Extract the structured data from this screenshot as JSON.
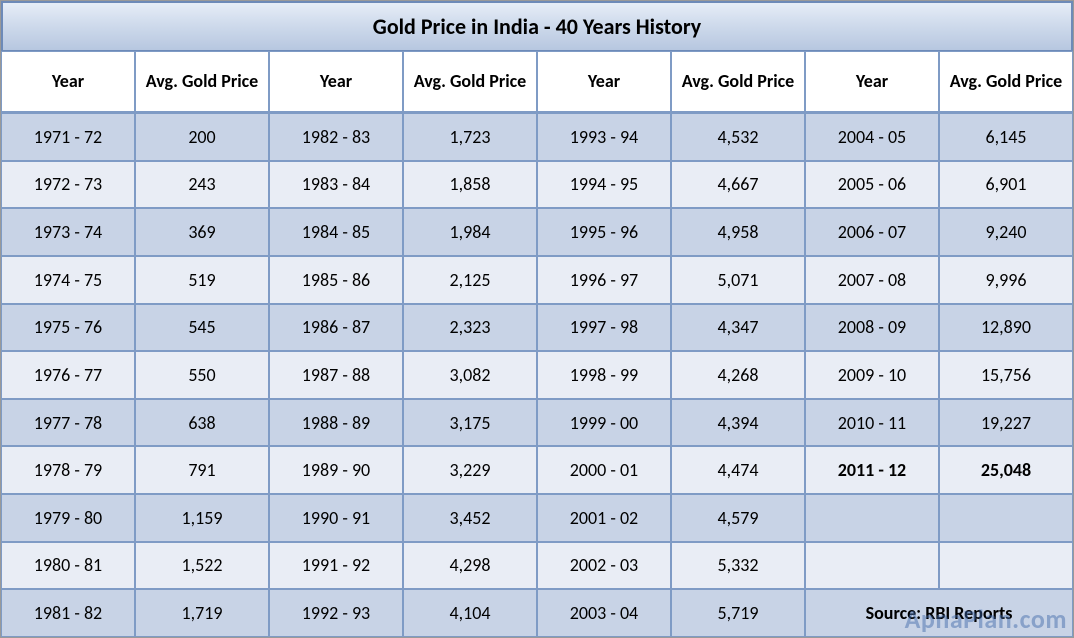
{
  "table": {
    "title": "Gold Price in India - 40 Years History",
    "header_pair": {
      "year": "Year",
      "price": "Avg. Gold Price"
    },
    "column_pairs": 4,
    "rows_per_column": 11,
    "colors": {
      "border": "#7f9bc5",
      "title_gradient_top": "#e6edf7",
      "title_gradient_mid": "#cdd9eb",
      "title_gradient_bottom": "#b7c7e0",
      "row_odd_bg": "#c8d3e6",
      "row_even_bg": "#e9edf5",
      "header_bg": "#ffffff",
      "text": "#000000",
      "watermark": "#3b65a8"
    },
    "fonts": {
      "title_size_pt": 17,
      "header_size_pt": 14,
      "cell_size_pt": 14,
      "family": "Calibri"
    },
    "bold_highlight": {
      "year": "2011 - 12",
      "price": "25,048"
    },
    "source_label": "Source: RBI Reports",
    "watermark": "ApnaPlan.com",
    "data": [
      [
        {
          "year": "1971 - 72",
          "price": "200"
        },
        {
          "year": "1972 - 73",
          "price": "243"
        },
        {
          "year": "1973 - 74",
          "price": "369"
        },
        {
          "year": "1974 - 75",
          "price": "519"
        },
        {
          "year": "1975 - 76",
          "price": "545"
        },
        {
          "year": "1976 - 77",
          "price": "550"
        },
        {
          "year": "1977 - 78",
          "price": "638"
        },
        {
          "year": "1978 - 79",
          "price": "791"
        },
        {
          "year": "1979 - 80",
          "price": "1,159"
        },
        {
          "year": "1980 - 81",
          "price": "1,522"
        },
        {
          "year": "1981 - 82",
          "price": "1,719"
        }
      ],
      [
        {
          "year": "1982 - 83",
          "price": "1,723"
        },
        {
          "year": "1983 - 84",
          "price": "1,858"
        },
        {
          "year": "1984 - 85",
          "price": "1,984"
        },
        {
          "year": "1985 - 86",
          "price": "2,125"
        },
        {
          "year": "1986 - 87",
          "price": "2,323"
        },
        {
          "year": "1987 - 88",
          "price": "3,082"
        },
        {
          "year": "1988 - 89",
          "price": "3,175"
        },
        {
          "year": "1989 - 90",
          "price": "3,229"
        },
        {
          "year": "1990 - 91",
          "price": "3,452"
        },
        {
          "year": "1991 - 92",
          "price": "4,298"
        },
        {
          "year": "1992 - 93",
          "price": "4,104"
        }
      ],
      [
        {
          "year": "1993 - 94",
          "price": "4,532"
        },
        {
          "year": "1994 - 95",
          "price": "4,667"
        },
        {
          "year": "1995 - 96",
          "price": "4,958"
        },
        {
          "year": "1996 - 97",
          "price": "5,071"
        },
        {
          "year": "1997 - 98",
          "price": "4,347"
        },
        {
          "year": "1998 - 99",
          "price": "4,268"
        },
        {
          "year": "1999 - 00",
          "price": "4,394"
        },
        {
          "year": "2000 - 01",
          "price": "4,474"
        },
        {
          "year": "2001 - 02",
          "price": "4,579"
        },
        {
          "year": "2002 - 03",
          "price": "5,332"
        },
        {
          "year": "2003 - 04",
          "price": "5,719"
        }
      ],
      [
        {
          "year": "2004 - 05",
          "price": "6,145"
        },
        {
          "year": "2005 - 06",
          "price": "6,901"
        },
        {
          "year": "2006 - 07",
          "price": "9,240"
        },
        {
          "year": "2007 - 08",
          "price": "9,996"
        },
        {
          "year": "2008 - 09",
          "price": "12,890"
        },
        {
          "year": "2009 - 10",
          "price": "15,756"
        },
        {
          "year": "2010 - 11",
          "price": "19,227"
        },
        {
          "year": "2011 - 12",
          "price": "25,048"
        },
        {
          "year": "",
          "price": ""
        },
        {
          "year": "",
          "price": ""
        },
        {
          "year": "__SOURCE__",
          "price": ""
        }
      ]
    ]
  }
}
